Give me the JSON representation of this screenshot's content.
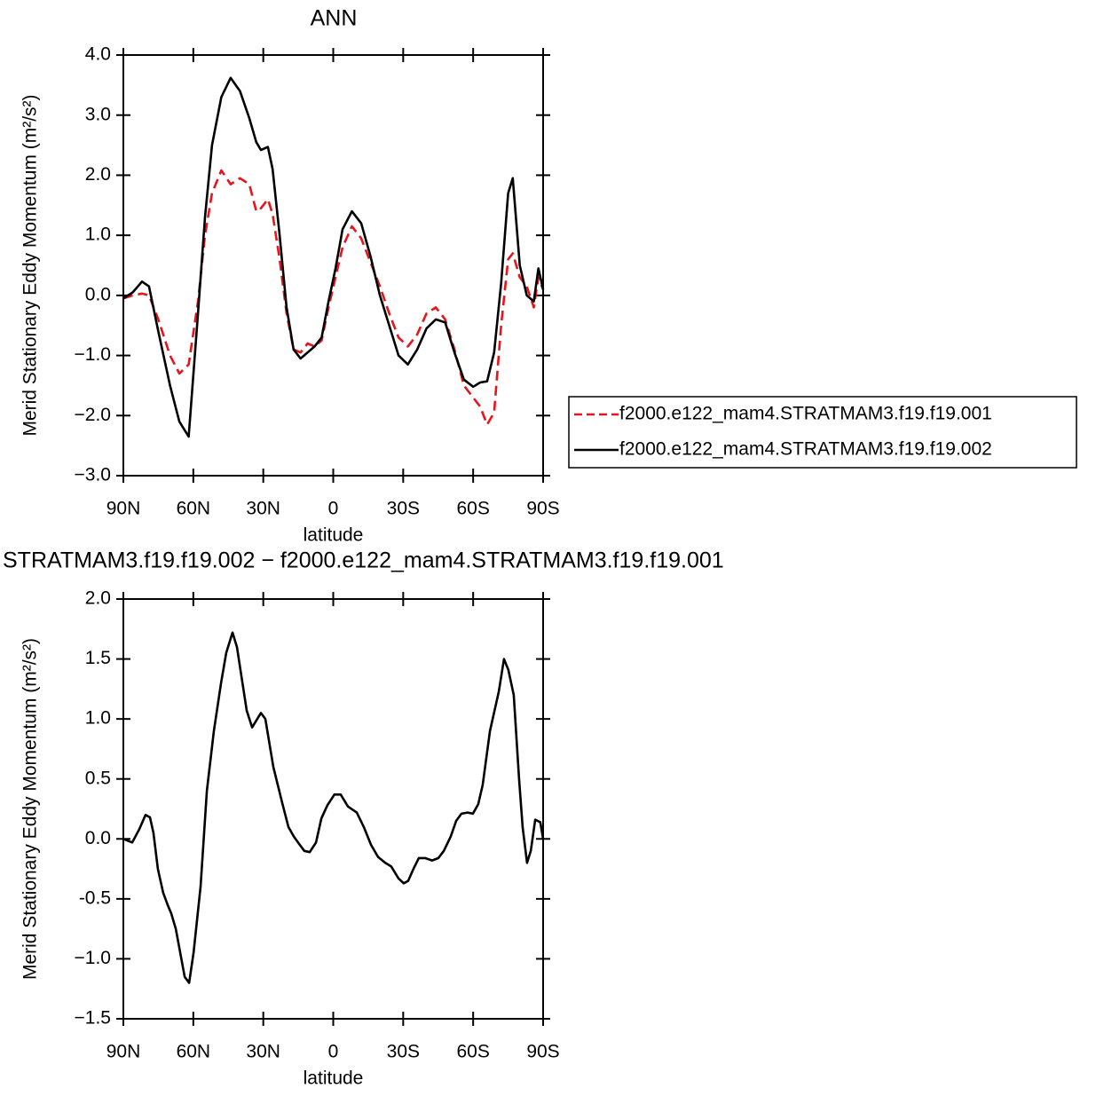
{
  "chart_data": [
    {
      "type": "line",
      "title": "ANN",
      "xlabel": "latitude",
      "ylabel": "Merid Stationary Eddy Momentum (m²/s²)",
      "x": [
        90,
        86,
        82,
        79,
        75,
        70,
        66,
        62,
        58,
        55,
        52,
        48,
        44,
        40,
        36,
        33,
        31,
        28,
        26,
        23,
        20,
        17,
        14,
        11,
        8,
        5,
        2,
        -1,
        -4,
        -8,
        -12,
        -16,
        -20,
        -24,
        -28,
        -32,
        -36,
        -40,
        -44,
        -48,
        -52,
        -56,
        -60,
        -63,
        -66,
        -69,
        -72,
        -75,
        -77,
        -80,
        -83,
        -86,
        -88,
        -90
      ],
      "series": [
        {
          "name": "f2000.e122_mam4.STRATMAM3.f19.f19.001",
          "color": "#e8141c",
          "dashed": true,
          "values": [
            -0.05,
            0.0,
            0.03,
            0.0,
            -0.4,
            -1.0,
            -1.3,
            -1.15,
            -0.1,
            1.0,
            1.7,
            2.08,
            1.85,
            1.95,
            1.85,
            1.4,
            1.45,
            1.6,
            1.35,
            0.6,
            -0.3,
            -0.9,
            -0.95,
            -0.8,
            -0.85,
            -0.75,
            -0.2,
            0.3,
            0.8,
            1.15,
            0.95,
            0.55,
            0.15,
            -0.3,
            -0.7,
            -0.85,
            -0.65,
            -0.3,
            -0.2,
            -0.4,
            -0.9,
            -1.5,
            -1.7,
            -1.85,
            -2.15,
            -1.95,
            -0.5,
            0.6,
            0.7,
            0.3,
            0.15,
            -0.2,
            0.3,
            0.1
          ]
        },
        {
          "name": "f2000.e122_mam4.STRATMAM3.f19.f19.002",
          "color": "#000000",
          "dashed": false,
          "values": [
            -0.05,
            0.05,
            0.23,
            0.15,
            -0.6,
            -1.5,
            -2.1,
            -2.35,
            -0.3,
            1.3,
            2.5,
            3.3,
            3.62,
            3.4,
            2.95,
            2.55,
            2.42,
            2.47,
            2.1,
            1.0,
            -0.2,
            -0.9,
            -1.05,
            -0.95,
            -0.85,
            -0.7,
            -0.1,
            0.45,
            1.1,
            1.4,
            1.2,
            0.65,
            0.0,
            -0.5,
            -1.0,
            -1.15,
            -0.9,
            -0.55,
            -0.4,
            -0.45,
            -0.95,
            -1.4,
            -1.52,
            -1.45,
            -1.43,
            -0.95,
            0.2,
            1.7,
            1.95,
            0.5,
            0.0,
            -0.1,
            0.45,
            0.1
          ]
        }
      ],
      "xlim": [
        90,
        -90
      ],
      "xticks": [
        {
          "value": 90,
          "label": "90N"
        },
        {
          "value": 60,
          "label": "60N"
        },
        {
          "value": 30,
          "label": "30N"
        },
        0,
        {
          "value": -30,
          "label": "30S"
        },
        {
          "value": -60,
          "label": "60S"
        },
        {
          "value": -90,
          "label": "90S"
        }
      ],
      "ylim": [
        -3,
        4
      ],
      "yticks": [
        {
          "value": -3,
          "label": "−3.0"
        },
        {
          "value": -2,
          "label": "−2.0"
        },
        {
          "value": -1,
          "label": "−1.0"
        },
        {
          "value": 0,
          "label": "0.0"
        },
        {
          "value": 1,
          "label": "1.0"
        },
        {
          "value": 2,
          "label": "2.0"
        },
        {
          "value": 3,
          "label": "3.0"
        },
        {
          "value": 4,
          "label": "4.0"
        }
      ],
      "legend": "right"
    },
    {
      "type": "line",
      "title": "STRATMAM3.f19.f19.002 − f2000.e122_mam4.STRATMAM3.f19.f19.001",
      "xlabel": "latitude",
      "ylabel": "Merid Stationary Eddy Momentum (m²/s²)",
      "x": [
        90,
        86.2,
        83.2,
        80.5,
        78.6,
        77.1,
        75.2,
        72.9,
        71.0,
        69.5,
        67.5,
        65.6,
        63.7,
        61.8,
        59.9,
        56.9,
        54.2,
        51.2,
        48.1,
        45.9,
        43.2,
        41.3,
        37.1,
        34.8,
        31.0,
        29.1,
        25.7,
        21.9,
        19.2,
        16.9,
        14.7,
        12.4,
        10.1,
        7.4,
        5.1,
        2.5,
        -0.5,
        -3.2,
        -6.3,
        -10.1,
        -13.1,
        -16.2,
        -19.2,
        -22.3,
        -24.9,
        -28.0,
        -30.2,
        -32.1,
        -34.4,
        -36.7,
        -39.4,
        -42.4,
        -45.1,
        -47.4,
        -50.4,
        -52.7,
        -55.0,
        -57.6,
        -59.9,
        -62.2,
        -64.1,
        -67.2,
        -71.0,
        -73.2,
        -75.1,
        -77.4,
        -79.7,
        -81.2,
        -83.1,
        -84.7,
        -86.6,
        -88.8,
        -90
      ],
      "series": [
        {
          "name": null,
          "color": "#000000",
          "dashed": false,
          "values": [
            0.0,
            -0.03,
            0.08,
            0.2,
            0.18,
            0.05,
            -0.25,
            -0.45,
            -0.55,
            -0.62,
            -0.75,
            -0.95,
            -1.15,
            -1.2,
            -0.95,
            -0.4,
            0.4,
            0.9,
            1.3,
            1.55,
            1.72,
            1.6,
            1.07,
            0.93,
            1.05,
            1.0,
            0.6,
            0.3,
            0.1,
            0.02,
            -0.04,
            -0.1,
            -0.11,
            -0.03,
            0.17,
            0.28,
            0.37,
            0.37,
            0.27,
            0.22,
            0.1,
            -0.05,
            -0.15,
            -0.2,
            -0.23,
            -0.33,
            -0.37,
            -0.35,
            -0.25,
            -0.16,
            -0.16,
            -0.18,
            -0.16,
            -0.1,
            0.02,
            0.15,
            0.21,
            0.22,
            0.21,
            0.29,
            0.45,
            0.9,
            1.23,
            1.5,
            1.41,
            1.2,
            0.5,
            0.1,
            -0.2,
            -0.1,
            0.16,
            0.14,
            0.0
          ]
        }
      ],
      "xlim": [
        90,
        -90
      ],
      "xticks": [
        {
          "value": 90,
          "label": "90N"
        },
        {
          "value": 60,
          "label": "60N"
        },
        {
          "value": 30,
          "label": "30N"
        },
        0,
        {
          "value": -30,
          "label": "30S"
        },
        {
          "value": -60,
          "label": "60S"
        },
        {
          "value": -90,
          "label": "90S"
        }
      ],
      "ylim": [
        -1.5,
        2
      ],
      "yticks": [
        {
          "value": -1.5,
          "label": "−1.5"
        },
        {
          "value": -1,
          "label": "−1.0"
        },
        -0.5,
        {
          "value": 0,
          "label": "0.0"
        },
        0.5,
        {
          "value": 1,
          "label": "1.0"
        },
        1.5,
        {
          "value": 2,
          "label": "2.0"
        }
      ]
    }
  ]
}
